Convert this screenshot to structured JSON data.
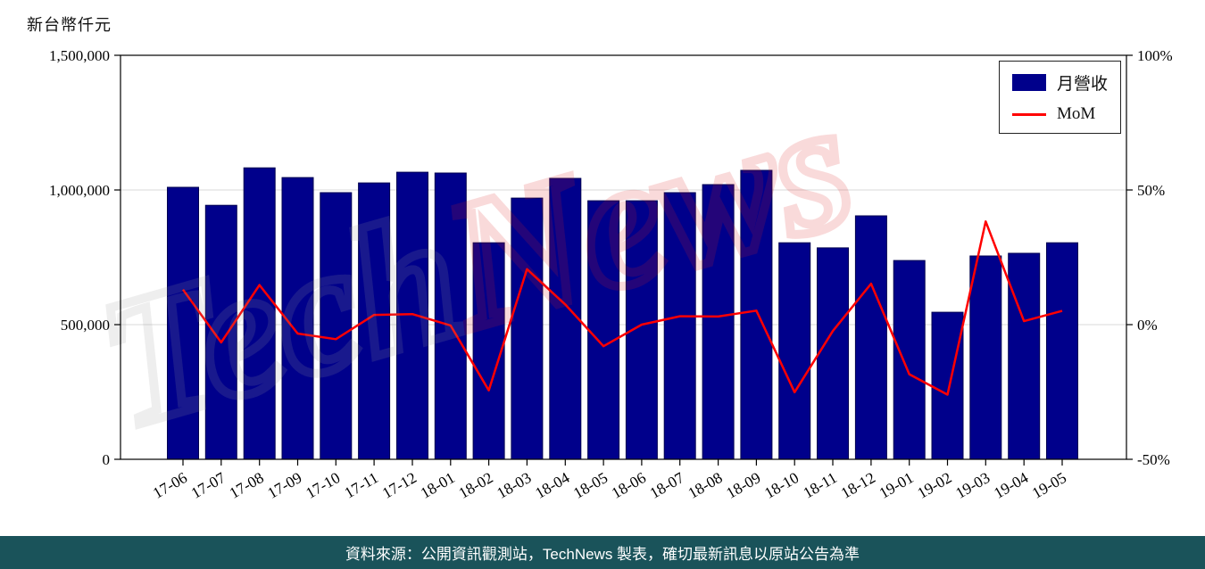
{
  "page": {
    "watermark_part1": "Tech",
    "watermark_part2": "News"
  },
  "footer": {
    "text": "資料來源：公開資訊觀測站，TechNews 製表，確切最新訊息以原站公告為準"
  },
  "colors": {
    "bar": "#00008b",
    "bar_edge": "#000050",
    "line": "#ff0000",
    "footer_bg": "#1a535a",
    "grid": "#d9d9d9",
    "spine": "#000000",
    "watermark_tech": "#9a9a9a",
    "watermark_news": "#dd2222"
  },
  "chart_data": {
    "type": "bar",
    "title": "",
    "ylabel_left": "新台幣仟元",
    "categories": [
      "17-06",
      "17-07",
      "17-08",
      "17-09",
      "17-10",
      "17-11",
      "17-12",
      "18-01",
      "18-02",
      "18-03",
      "18-04",
      "18-05",
      "18-06",
      "18-07",
      "18-08",
      "18-09",
      "18-10",
      "18-11",
      "18-12",
      "19-01",
      "19-02",
      "19-03",
      "19-04",
      "19-05"
    ],
    "series": [
      {
        "name": "月營收",
        "type": "bar",
        "axis": "left",
        "color": "#00008b",
        "values": [
          1010000,
          943000,
          1082000,
          1046000,
          990000,
          1026000,
          1066000,
          1063000,
          804000,
          970000,
          1043000,
          960000,
          960000,
          990000,
          1020000,
          1073000,
          804000,
          785000,
          904000,
          738000,
          546000,
          755000,
          765000,
          804000
        ]
      },
      {
        "name": "MoM",
        "type": "line",
        "axis": "right",
        "color": "#ff0000",
        "values": [
          13.0,
          -6.6,
          14.7,
          -3.3,
          -5.4,
          3.6,
          3.9,
          -0.3,
          -24.4,
          20.6,
          7.5,
          -8.0,
          0.0,
          3.1,
          3.0,
          5.2,
          -25.1,
          -2.4,
          15.2,
          -18.4,
          -26.0,
          38.3,
          1.3,
          5.1
        ]
      }
    ],
    "ylim_left": [
      0,
      1500000
    ],
    "ylim_right": [
      -50,
      100
    ],
    "yticks_left": {
      "values": [
        0,
        500000,
        1000000,
        1500000
      ],
      "labels": [
        "0",
        "500,000",
        "1,000,000",
        "1,500,000"
      ]
    },
    "yticks_right": {
      "values": [
        -50,
        0,
        50,
        100
      ],
      "labels": [
        "-50%",
        "0%",
        "50%",
        "100%"
      ]
    },
    "grid": true,
    "legend_position": "top-right"
  }
}
